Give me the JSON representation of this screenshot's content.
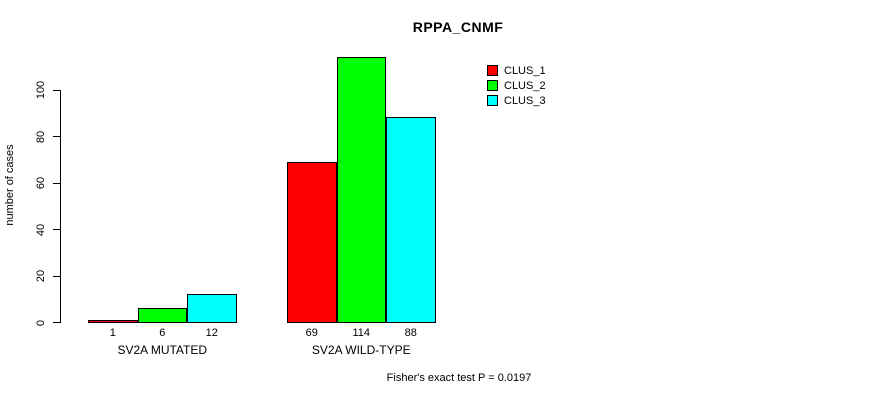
{
  "title": "RPPA_CNMF",
  "footnote": "Fisher's exact test P = 0.0197",
  "chart_data": {
    "type": "bar",
    "title": "RPPA_CNMF",
    "xlabel": "",
    "ylabel": "number of cases",
    "ylim": [
      0,
      100
    ],
    "yticks": [
      0,
      20,
      40,
      60,
      80,
      100
    ],
    "grid": false,
    "legend_position": "top-right-outside-plot",
    "categories": [
      "SV2A MUTATED",
      "SV2A WILD-TYPE"
    ],
    "series": [
      {
        "name": "CLUS_1",
        "color": "#FF0000",
        "values": [
          1,
          69
        ]
      },
      {
        "name": "CLUS_2",
        "color": "#00FF00",
        "values": [
          6,
          114
        ]
      },
      {
        "name": "CLUS_3",
        "color": "#00FFFF",
        "values": [
          12,
          88
        ]
      }
    ],
    "bar_value_labels": [
      [
        "1",
        "6",
        "12"
      ],
      [
        "69",
        "114",
        "88"
      ]
    ],
    "footnote": "Fisher's exact test P = 0.0197"
  }
}
